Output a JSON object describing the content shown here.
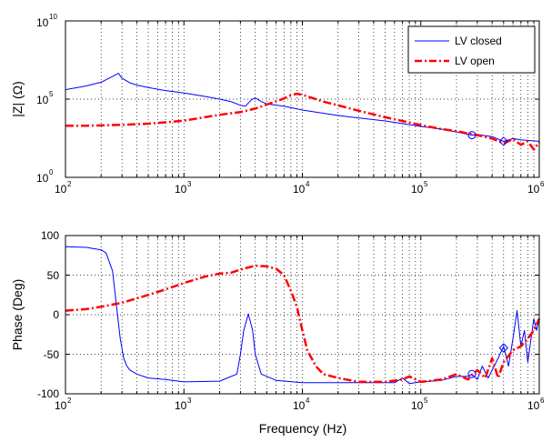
{
  "chart_data": [
    {
      "type": "line",
      "ylabel": "|Z| (Ω)",
      "x_scale": "log",
      "y_scale": "log",
      "xlim": [
        100,
        1000000
      ],
      "ylim": [
        1,
        10000000000
      ],
      "xticks": [
        100,
        1000,
        10000,
        100000,
        1000000
      ],
      "yticks": [
        1,
        100000,
        10000000000
      ],
      "grid": "dotted",
      "legend_position": "top-right",
      "legend": [
        "LV closed",
        "LV open"
      ],
      "colors": {
        "LV closed": "#0000ff",
        "LV open": "#ff0000"
      },
      "series": [
        {
          "name": "LV closed",
          "style": "solid",
          "x": [
            100,
            150,
            200,
            250,
            280,
            300,
            350,
            400,
            500,
            700,
            1000,
            1500,
            2000,
            2500,
            3000,
            3300,
            3700,
            4000,
            4500,
            5000,
            7000,
            10000,
            20000,
            50000,
            100000,
            150000,
            200000,
            270000,
            300000,
            400000,
            500000,
            600000,
            700000,
            1000000
          ],
          "y": [
            400000,
            700000,
            1200000,
            2800000,
            4500000,
            2200000,
            1100000,
            800000,
            550000,
            350000,
            250000,
            150000,
            100000,
            70000,
            40000,
            35000,
            90000,
            120000,
            70000,
            50000,
            35000,
            20000,
            9000,
            4000,
            1800,
            1200,
            800,
            500,
            550,
            400,
            200,
            300,
            250,
            200
          ]
        },
        {
          "name": "LV open",
          "style": "dash-dot",
          "x": [
            100,
            150,
            200,
            300,
            500,
            700,
            1000,
            1500,
            2000,
            3000,
            4000,
            5000,
            7000,
            8000,
            9000,
            10000,
            12000,
            15000,
            20000,
            30000,
            50000,
            100000,
            150000,
            200000,
            300000,
            400000,
            500000,
            600000,
            700000,
            800000,
            900000,
            1000000
          ],
          "y": [
            2000,
            2000,
            2100,
            2300,
            2700,
            3300,
            4200,
            7000,
            10000,
            15000,
            25000,
            45000,
            110000,
            180000,
            220000,
            190000,
            120000,
            70000,
            40000,
            18000,
            7000,
            2200,
            1200,
            900,
            500,
            300,
            150,
            280,
            120,
            200,
            60,
            180
          ]
        }
      ],
      "markers": [
        {
          "series": "LV closed",
          "x": 270000,
          "y": 500,
          "shape": "circle"
        },
        {
          "series": "LV closed",
          "x": 500000,
          "y": 200,
          "shape": "diamond"
        }
      ]
    },
    {
      "type": "line",
      "xlabel": "Frequency (Hz)",
      "ylabel": "Phase (Deg)",
      "x_scale": "log",
      "xlim": [
        100,
        1000000
      ],
      "ylim": [
        -100,
        100
      ],
      "xticks": [
        100,
        1000,
        10000,
        100000,
        1000000
      ],
      "yticks": [
        -100,
        -50,
        0,
        50,
        100
      ],
      "grid": "dotted",
      "colors": {
        "LV closed": "#0000ff",
        "LV open": "#ff0000"
      },
      "series": [
        {
          "name": "LV closed",
          "style": "solid",
          "x": [
            100,
            150,
            200,
            220,
            250,
            270,
            290,
            310,
            330,
            350,
            400,
            500,
            700,
            1000,
            2000,
            2800,
            3000,
            3200,
            3500,
            3800,
            4000,
            4500,
            6000,
            10000,
            30000,
            60000,
            70000,
            80000,
            100000,
            150000,
            200000,
            250000,
            270000,
            300000,
            330000,
            370000,
            400000,
            450000,
            500000,
            550000,
            600000,
            650000,
            700000,
            750000,
            800000,
            900000,
            950000,
            1000000
          ],
          "y": [
            86,
            85,
            82,
            78,
            55,
            10,
            -30,
            -55,
            -65,
            -70,
            -75,
            -80,
            -82,
            -85,
            -84,
            -75,
            -50,
            -20,
            1,
            -20,
            -50,
            -75,
            -83,
            -86,
            -86,
            -86,
            -80,
            -87,
            -85,
            -83,
            -78,
            -78,
            -75,
            -82,
            -65,
            -80,
            -70,
            -55,
            -40,
            -65,
            -30,
            5,
            -40,
            -20,
            -60,
            -5,
            -20,
            -5
          ]
        },
        {
          "name": "LV open",
          "style": "dash-dot",
          "x": [
            100,
            150,
            200,
            300,
            500,
            700,
            1000,
            1500,
            2000,
            2500,
            3000,
            4000,
            5000,
            6000,
            7000,
            8000,
            9000,
            10000,
            11000,
            13000,
            15000,
            20000,
            30000,
            50000,
            70000,
            80000,
            100000,
            150000,
            200000,
            250000,
            300000,
            350000,
            400000,
            450000,
            500000,
            600000,
            700000,
            800000,
            900000,
            1000000
          ],
          "y": [
            5,
            7,
            10,
            15,
            25,
            32,
            40,
            48,
            52,
            53,
            57,
            62,
            61,
            58,
            50,
            30,
            10,
            -20,
            -45,
            -65,
            -75,
            -80,
            -85,
            -85,
            -82,
            -78,
            -85,
            -82,
            -75,
            -82,
            -70,
            -80,
            -55,
            -80,
            -60,
            -45,
            -40,
            -30,
            -20,
            -5
          ]
        }
      ],
      "markers": [
        {
          "series": "LV closed",
          "x": 270000,
          "y": -75,
          "shape": "circle"
        },
        {
          "series": "LV closed",
          "x": 500000,
          "y": -42,
          "shape": "diamond"
        }
      ]
    }
  ],
  "labels": {
    "top_ylabel": "|Z| (Ω)",
    "bottom_ylabel": "Phase (Deg)",
    "xlabel": "Frequency (Hz)",
    "legend_1": "LV closed",
    "legend_2": "LV open",
    "x_base": "10",
    "x_exps": [
      "2",
      "3",
      "4",
      "5",
      "6"
    ],
    "top_y_base": [
      "10",
      "10",
      "10"
    ],
    "top_y_exps": [
      "0",
      "5",
      "10"
    ],
    "bottom_yticks": [
      "-100",
      "-50",
      "0",
      "50",
      "100"
    ]
  }
}
